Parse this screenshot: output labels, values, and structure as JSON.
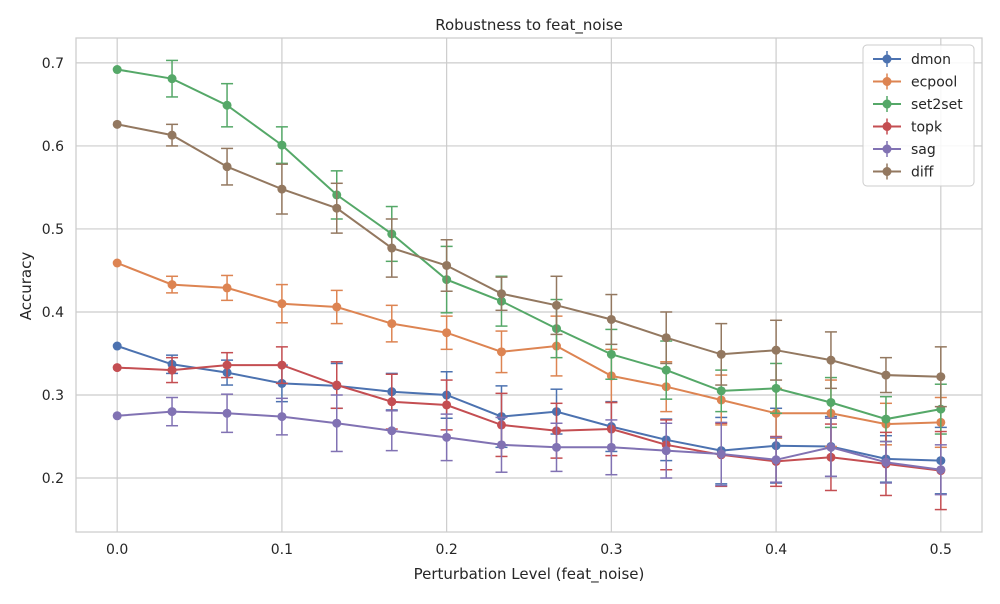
{
  "chart_data": {
    "type": "line",
    "title": "Robustness to feat_noise",
    "xlabel": "Perturbation Level (feat_noise)",
    "ylabel": "Accuracy",
    "xlim": [
      -0.025,
      0.525
    ],
    "ylim": [
      0.135,
      0.73
    ],
    "x_ticks": [
      0.0,
      0.1,
      0.2,
      0.3,
      0.4,
      0.5
    ],
    "x_tick_labels": [
      "0.0",
      "0.1",
      "0.2",
      "0.3",
      "0.4",
      "0.5"
    ],
    "y_ticks": [
      0.2,
      0.3,
      0.4,
      0.5,
      0.6,
      0.7
    ],
    "y_tick_labels": [
      "0.2",
      "0.3",
      "0.4",
      "0.5",
      "0.6",
      "0.7"
    ],
    "grid": true,
    "legend_position": "top-right",
    "x": [
      0.0,
      0.0333,
      0.0667,
      0.1,
      0.1333,
      0.1667,
      0.2,
      0.2333,
      0.2667,
      0.3,
      0.3333,
      0.3667,
      0.4,
      0.4333,
      0.4667,
      0.5
    ],
    "series": [
      {
        "name": "dmon",
        "color": "#4c72b0",
        "values": [
          0.359,
          0.337,
          0.327,
          0.314,
          0.311,
          0.304,
          0.3,
          0.274,
          0.28,
          0.262,
          0.246,
          0.233,
          0.239,
          0.238,
          0.223,
          0.221
        ],
        "errors": [
          0.0,
          0.011,
          0.015,
          0.022,
          0.027,
          0.022,
          0.028,
          0.037,
          0.027,
          0.03,
          0.025,
          0.04,
          0.045,
          0.036,
          0.028,
          0.04
        ]
      },
      {
        "name": "ecpool",
        "color": "#dd8452",
        "values": [
          0.459,
          0.433,
          0.429,
          0.41,
          0.406,
          0.386,
          0.375,
          0.352,
          0.359,
          0.323,
          0.31,
          0.294,
          0.278,
          0.278,
          0.265,
          0.267
        ],
        "errors": [
          0.0,
          0.01,
          0.015,
          0.023,
          0.02,
          0.022,
          0.02,
          0.025,
          0.036,
          0.032,
          0.03,
          0.03,
          0.03,
          0.04,
          0.025,
          0.03
        ]
      },
      {
        "name": "set2set",
        "color": "#55a868",
        "values": [
          0.692,
          0.681,
          0.649,
          0.601,
          0.541,
          0.494,
          0.439,
          0.413,
          0.38,
          0.349,
          0.33,
          0.305,
          0.308,
          0.291,
          0.271,
          0.283
        ],
        "errors": [
          0.0,
          0.022,
          0.026,
          0.022,
          0.029,
          0.033,
          0.04,
          0.03,
          0.035,
          0.03,
          0.035,
          0.025,
          0.03,
          0.03,
          0.027,
          0.03
        ]
      },
      {
        "name": "topk",
        "color": "#c44e52",
        "values": [
          0.333,
          0.33,
          0.336,
          0.336,
          0.312,
          0.292,
          0.288,
          0.264,
          0.257,
          0.259,
          0.24,
          0.228,
          0.22,
          0.225,
          0.217,
          0.209
        ],
        "errors": [
          0.0,
          0.015,
          0.015,
          0.022,
          0.028,
          0.033,
          0.03,
          0.038,
          0.033,
          0.032,
          0.03,
          0.038,
          0.03,
          0.04,
          0.038,
          0.047
        ]
      },
      {
        "name": "sag",
        "color": "#8172b3",
        "values": [
          0.275,
          0.28,
          0.278,
          0.274,
          0.266,
          0.257,
          0.249,
          0.24,
          0.237,
          0.237,
          0.233,
          0.229,
          0.222,
          0.237,
          0.219,
          0.21
        ],
        "errors": [
          0.0,
          0.017,
          0.023,
          0.022,
          0.034,
          0.024,
          0.028,
          0.033,
          0.029,
          0.033,
          0.033,
          0.038,
          0.027,
          0.035,
          0.025,
          0.03
        ]
      },
      {
        "name": "diff",
        "color": "#937860",
        "values": [
          0.626,
          0.613,
          0.575,
          0.548,
          0.525,
          0.477,
          0.456,
          0.422,
          0.408,
          0.391,
          0.369,
          0.349,
          0.354,
          0.342,
          0.324,
          0.322
        ],
        "errors": [
          0.0,
          0.013,
          0.022,
          0.03,
          0.03,
          0.035,
          0.031,
          0.02,
          0.035,
          0.03,
          0.031,
          0.037,
          0.036,
          0.034,
          0.021,
          0.036
        ]
      }
    ]
  }
}
